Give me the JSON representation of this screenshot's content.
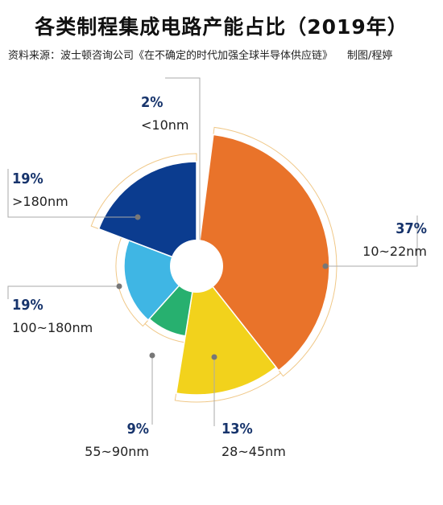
{
  "header": {
    "title": "各类制程集成电路产能占比（2019年）",
    "source": "资料来源：波士顿咨询公司《在不确定的时代加强全球半导体供应链》",
    "credit": "制图/程婷"
  },
  "chart_data": {
    "type": "pie",
    "title": "各类制程集成电路产能占比（2019年）",
    "slices": [
      {
        "label": "<10nm",
        "value": 2,
        "value_label": "2%",
        "color": "#5b57c0"
      },
      {
        "label": "10~22nm",
        "value": 37,
        "value_label": "37%",
        "color": "#e9732a"
      },
      {
        "label": "28~45nm",
        "value": 13,
        "value_label": "13%",
        "color": "#f2d21c"
      },
      {
        "label": "55~90nm",
        "value": 9,
        "value_label": "9%",
        "color": "#27b06f"
      },
      {
        "label": "100~180nm",
        "value": 19,
        "value_label": "19%",
        "color": "#3fb6e4"
      },
      {
        "label": ">180nm",
        "value": 19,
        "value_label": "19%",
        "color": "#0b3c8f"
      }
    ],
    "label_color": "#17346c",
    "outline_color": "#f0c888",
    "leader_color": "#aaaaaa"
  }
}
